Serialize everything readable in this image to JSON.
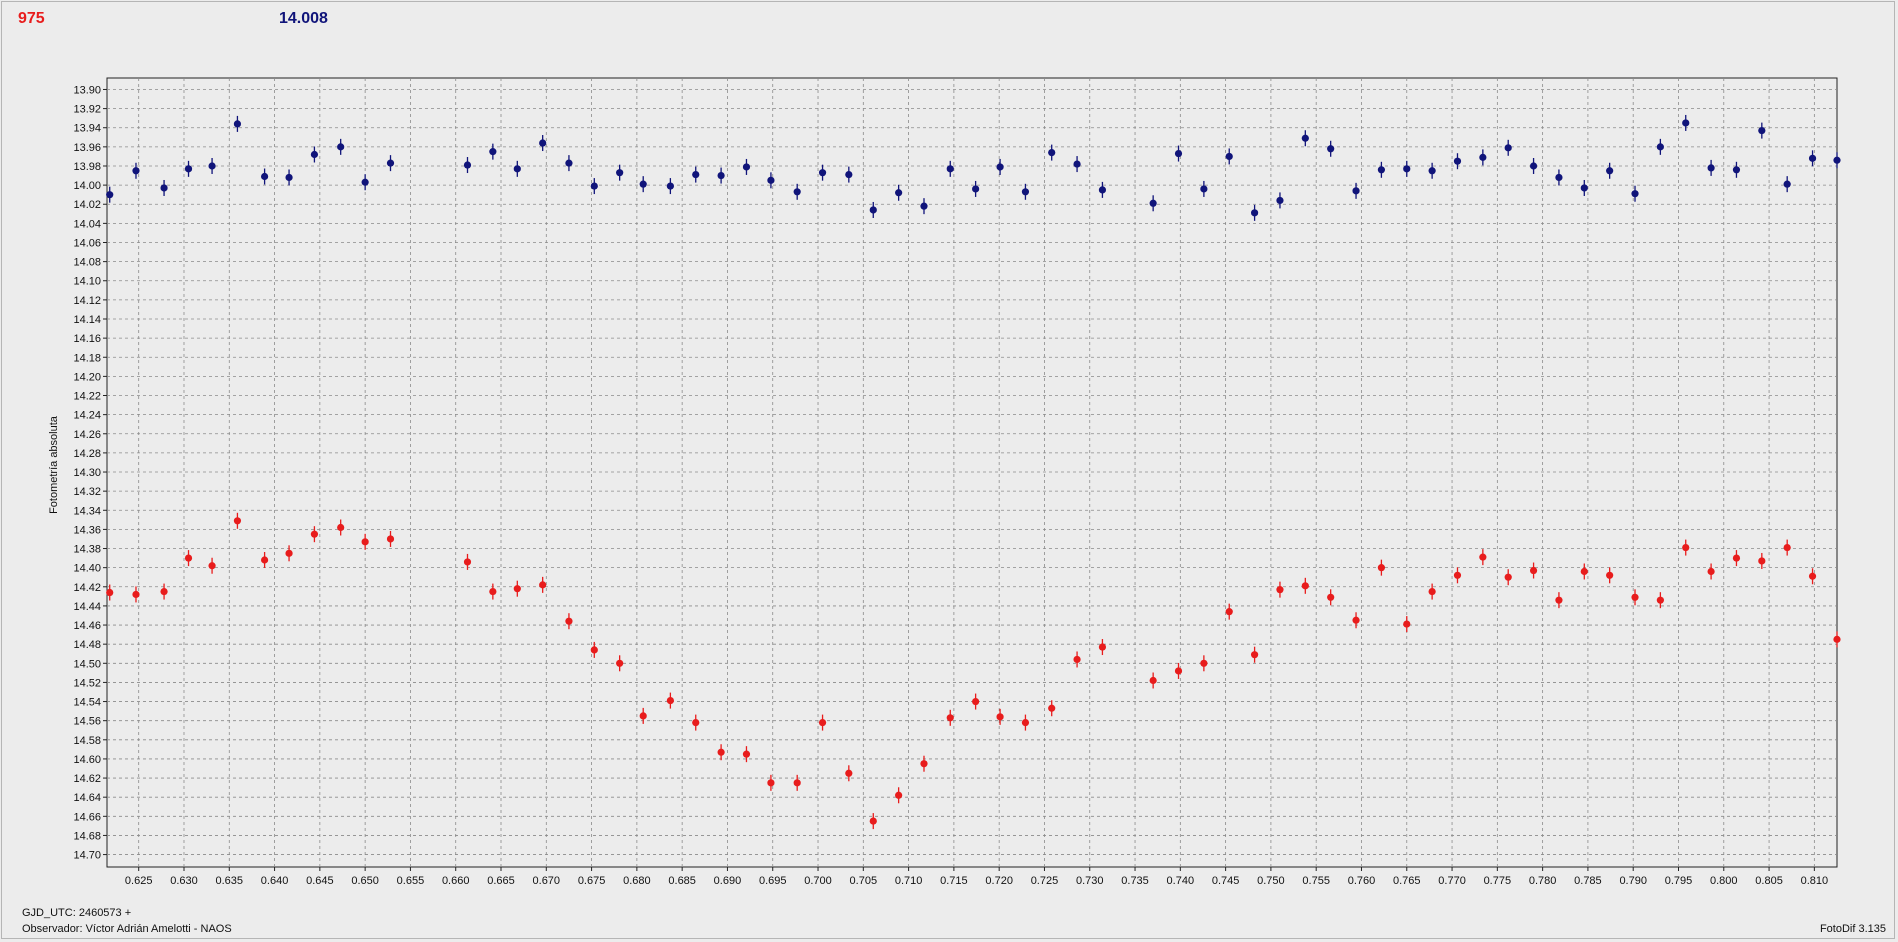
{
  "header": {
    "counter": "975",
    "mean_value": "14.008"
  },
  "footer": {
    "gjd_label": "GJD_UTC: 2460573 +",
    "observer": "Observador: Víctor Adrián Amelotti - NAOS",
    "software": "FotoDif 3.135"
  },
  "colors": {
    "series_a": "#10147a",
    "series_b": "#e81c1c",
    "background": "#ececec",
    "grid": "#8a8a8a"
  },
  "chart_data": {
    "type": "scatter",
    "title": "",
    "xlabel": "",
    "ylabel": "Fotometría absoluta",
    "xlim": [
      0.6215,
      0.8125
    ],
    "ylim": [
      13.888,
      14.713
    ],
    "y_inverted": true,
    "grid": true,
    "x_ticks": [
      0.625,
      0.63,
      0.635,
      0.64,
      0.645,
      0.65,
      0.655,
      0.66,
      0.665,
      0.67,
      0.675,
      0.68,
      0.685,
      0.69,
      0.695,
      0.7,
      0.705,
      0.71,
      0.715,
      0.72,
      0.725,
      0.73,
      0.735,
      0.74,
      0.745,
      0.75,
      0.755,
      0.76,
      0.765,
      0.77,
      0.775,
      0.78,
      0.785,
      0.79,
      0.795,
      0.8,
      0.805,
      0.81
    ],
    "y_ticks": [
      13.9,
      13.92,
      13.94,
      13.96,
      13.98,
      14.0,
      14.02,
      14.04,
      14.06,
      14.08,
      14.1,
      14.12,
      14.14,
      14.16,
      14.18,
      14.2,
      14.22,
      14.24,
      14.26,
      14.28,
      14.3,
      14.32,
      14.34,
      14.36,
      14.38,
      14.4,
      14.42,
      14.44,
      14.46,
      14.48,
      14.5,
      14.52,
      14.54,
      14.56,
      14.58,
      14.6,
      14.62,
      14.64,
      14.66,
      14.68,
      14.7
    ],
    "series": [
      {
        "color": "#10147a",
        "x": [
          0.6218,
          0.6247,
          0.6278,
          0.6305,
          0.6331,
          0.6359,
          0.6389,
          0.6416,
          0.6444,
          0.6473,
          0.65,
          0.6528,
          0.6613,
          0.6641,
          0.6668,
          0.6696,
          0.6725,
          0.6753,
          0.6781,
          0.6807,
          0.6837,
          0.6865,
          0.6893,
          0.6921,
          0.6948,
          0.6977,
          0.7005,
          0.7034,
          0.7061,
          0.7089,
          0.7117,
          0.7146,
          0.7174,
          0.7201,
          0.7229,
          0.7258,
          0.7286,
          0.7314,
          0.737,
          0.7398,
          0.7426,
          0.7454,
          0.7482,
          0.751,
          0.7538,
          0.7566,
          0.7594,
          0.7622,
          0.765,
          0.7678,
          0.7706,
          0.7734,
          0.7762,
          0.779,
          0.7818,
          0.7846,
          0.7874,
          0.7902,
          0.793,
          0.7958,
          0.7986,
          0.8014,
          0.8042,
          0.807,
          0.8098,
          0.8125
        ],
        "y": [
          14.01,
          13.985,
          14.003,
          13.983,
          13.98,
          13.936,
          13.991,
          13.992,
          13.968,
          13.96,
          13.997,
          13.977,
          13.979,
          13.965,
          13.983,
          13.956,
          13.977,
          14.001,
          13.987,
          13.999,
          14.001,
          13.989,
          13.99,
          13.981,
          13.995,
          14.007,
          13.987,
          13.989,
          14.026,
          14.008,
          14.022,
          13.983,
          14.004,
          13.981,
          14.007,
          13.966,
          13.978,
          14.005,
          14.019,
          13.967,
          14.004,
          13.97,
          14.029,
          14.016,
          13.951,
          13.962,
          14.006,
          13.984,
          13.983,
          13.985,
          13.975,
          13.971,
          13.961,
          13.98,
          13.992,
          14.003,
          13.985,
          14.009,
          13.96,
          13.935,
          13.982,
          13.984,
          13.943,
          13.999,
          13.972,
          13.974
        ]
      },
      {
        "color": "#e81c1c",
        "x": [
          0.6218,
          0.6247,
          0.6278,
          0.6305,
          0.6331,
          0.6359,
          0.6389,
          0.6416,
          0.6444,
          0.6473,
          0.65,
          0.6528,
          0.6613,
          0.6641,
          0.6668,
          0.6696,
          0.6725,
          0.6753,
          0.6781,
          0.6807,
          0.6837,
          0.6865,
          0.6893,
          0.6921,
          0.6948,
          0.6977,
          0.7005,
          0.7034,
          0.7061,
          0.7089,
          0.7117,
          0.7146,
          0.7174,
          0.7201,
          0.7229,
          0.7258,
          0.7286,
          0.7314,
          0.737,
          0.7398,
          0.7426,
          0.7454,
          0.7482,
          0.751,
          0.7538,
          0.7566,
          0.7594,
          0.7622,
          0.765,
          0.7678,
          0.7706,
          0.7734,
          0.7762,
          0.779,
          0.7818,
          0.7846,
          0.7874,
          0.7902,
          0.793,
          0.7958,
          0.7986,
          0.8014,
          0.8042,
          0.807,
          0.8098,
          0.8125
        ],
        "y": [
          14.426,
          14.428,
          14.425,
          14.39,
          14.398,
          14.351,
          14.392,
          14.385,
          14.365,
          14.358,
          14.373,
          14.37,
          14.394,
          14.425,
          14.422,
          14.418,
          14.456,
          14.486,
          14.5,
          14.555,
          14.539,
          14.562,
          14.593,
          14.595,
          14.625,
          14.625,
          14.562,
          14.615,
          14.665,
          14.638,
          14.605,
          14.557,
          14.54,
          14.556,
          14.562,
          14.547,
          14.496,
          14.483,
          14.518,
          14.508,
          14.5,
          14.446,
          14.491,
          14.423,
          14.419,
          14.431,
          14.455,
          14.4,
          14.459,
          14.425,
          14.408,
          14.389,
          14.41,
          14.403,
          14.434,
          14.404,
          14.408,
          14.431,
          14.434,
          14.379,
          14.404,
          14.39,
          14.393,
          14.379,
          14.409,
          14.475
        ]
      }
    ]
  }
}
